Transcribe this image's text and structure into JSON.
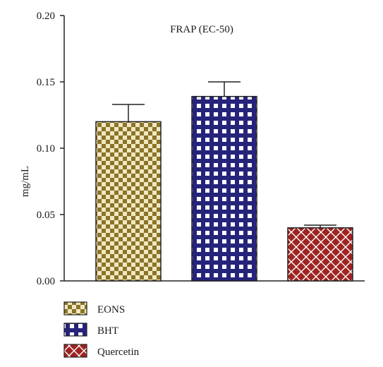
{
  "chart_data": {
    "type": "bar",
    "title": "FRAP (EC-50)",
    "xlabel": "",
    "ylabel": "mg/mL",
    "ylim": [
      0,
      0.2
    ],
    "yticks": [
      "0.00",
      "0.05",
      "0.10",
      "0.15",
      "0.20"
    ],
    "ytick_values": [
      0,
      0.05,
      0.1,
      0.15,
      0.2
    ],
    "categories": [
      "EONS",
      "BHT",
      "Quercetin"
    ],
    "values": [
      0.12,
      0.139,
      0.04
    ],
    "error_upper": [
      0.133,
      0.15,
      0.042
    ],
    "colors": [
      "#8b7427",
      "#26237a",
      "#9e2422"
    ],
    "patterns": [
      "checker",
      "grid-squares",
      "diamond-cross"
    ],
    "grid": false,
    "legend": {
      "placement": "bottom-left",
      "entries": [
        "EONS",
        "BHT",
        "Quercetin"
      ]
    }
  }
}
